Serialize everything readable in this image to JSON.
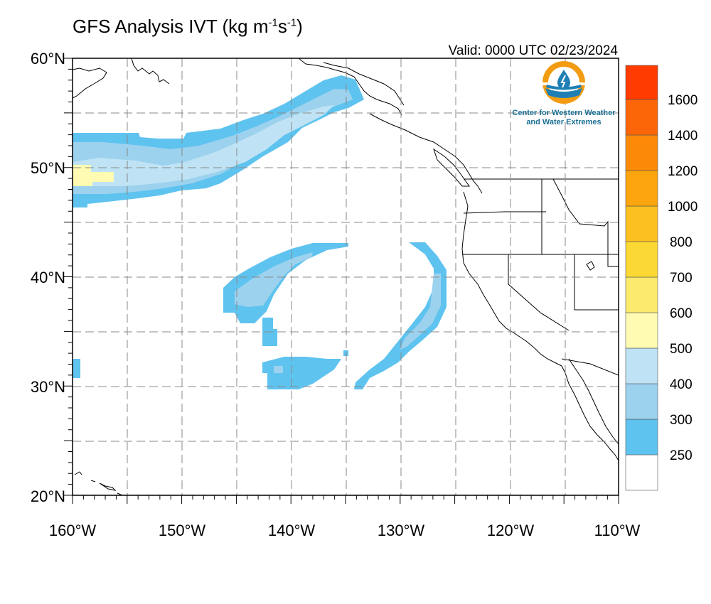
{
  "title": {
    "main": "GFS Analysis IVT (kg m",
    "exp1": "-1",
    "mid": "s",
    "exp2": "-1",
    "end": ")"
  },
  "valid": "Valid: 0000 UTC 02/23/2024",
  "logo": {
    "line1": "Center for Western Weather",
    "line2": "and Water Extremes",
    "ring_color": "#f39c12",
    "water_color": "#1f7fb5"
  },
  "axes": {
    "lat_labels": [
      "60°N",
      "50°N",
      "40°N",
      "30°N",
      "20°N"
    ],
    "lon_labels": [
      "160°W",
      "150°W",
      "140°W",
      "130°W",
      "120°W",
      "110°W"
    ],
    "lat_range": [
      20,
      60
    ],
    "lon_range": [
      -160,
      -110
    ]
  },
  "colorbar": {
    "labels": [
      "250",
      "300",
      "400",
      "500",
      "600",
      "700",
      "800",
      "1000",
      "1200",
      "1400",
      "1600"
    ],
    "colors": [
      "#ffffff",
      "#5fc3ef",
      "#9dd2ee",
      "#bfe3f5",
      "#fffbb3",
      "#fbea6d",
      "#fcd835",
      "#fcc021",
      "#fca50e",
      "#fc8a08",
      "#fd6608",
      "#ff3b00"
    ]
  },
  "chart_data": {
    "type": "heatmap",
    "variable": "IVT",
    "units": "kg m-1 s-1",
    "levels": [
      250,
      300,
      400,
      500,
      600,
      700,
      800,
      1000,
      1200,
      1400,
      1600
    ],
    "regions": [
      {
        "feature": "atmospheric river",
        "value_range": [
          250,
          600
        ],
        "path_lonlat": [
          [
            -160,
            49
          ],
          [
            -150,
            50.5
          ],
          [
            -144,
            52
          ],
          [
            -139,
            53.5
          ],
          [
            -134,
            55.5
          ],
          [
            -131.5,
            57.5
          ]
        ]
      },
      {
        "feature": "core",
        "value_range": [
          500,
          600
        ],
        "lon": [
          -160,
          -156.5
        ],
        "lat": [
          48.5,
          50.3
        ]
      },
      {
        "feature": "arc",
        "value_range": [
          250,
          400
        ],
        "path_lonlat": [
          [
            -143.5,
            36
          ],
          [
            -143,
            39
          ],
          [
            -140,
            41.5
          ],
          [
            -136.5,
            42.5
          ],
          [
            -135,
            43
          ]
        ]
      },
      {
        "feature": "arc",
        "value_range": [
          250,
          400
        ],
        "path_lonlat": [
          [
            -128,
            43
          ],
          [
            -126.5,
            40.5
          ],
          [
            -127,
            36.5
          ],
          [
            -130,
            33
          ],
          [
            -133.5,
            30
          ]
        ]
      },
      {
        "feature": "patch",
        "value_range": [
          250,
          400
        ],
        "lon": [
          -143,
          -135.5
        ],
        "lat": [
          30,
          32.5
        ]
      },
      {
        "feature": "patch",
        "value_range": [
          250,
          300
        ],
        "lon": [
          -142.5,
          -141.5
        ],
        "lat": [
          34,
          36
        ]
      },
      {
        "feature": "patch",
        "value_range": [
          250,
          300
        ],
        "lon": [
          -160,
          -159.3
        ],
        "lat": [
          30.8,
          32.7
        ]
      }
    ]
  }
}
